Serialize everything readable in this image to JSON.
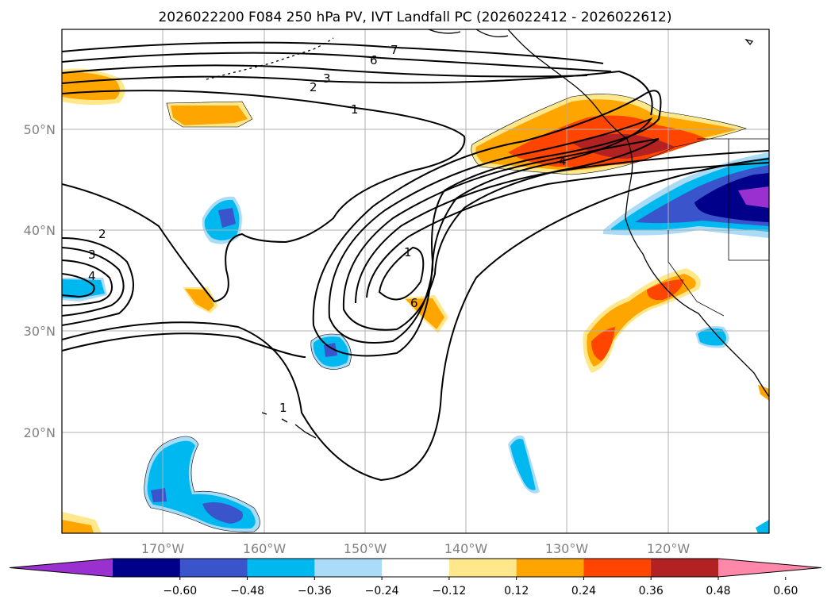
{
  "title": "2026022200 F084 250 hPa PV, IVT Landfall PC (2026022412 - 2026022612)",
  "map": {
    "lon_range": [
      -180,
      -110
    ],
    "lat_range": [
      10,
      60
    ],
    "lon_ticks": [
      "170°W",
      "160°W",
      "150°W",
      "140°W",
      "130°W",
      "120°W"
    ],
    "lat_ticks": [
      "50°N",
      "40°N",
      "30°N",
      "20°N"
    ],
    "gridlines": true,
    "contour_labels": [
      "7",
      "6",
      "3",
      "2",
      "1",
      "1",
      "2",
      "3",
      "4",
      "4",
      "6",
      "1"
    ]
  },
  "colorbar": {
    "ticks": [
      "−0.60",
      "−0.48",
      "−0.36",
      "−0.24",
      "−0.12",
      "0.12",
      "0.24",
      "0.36",
      "0.48",
      "0.60"
    ],
    "colors": [
      "#9b30d0",
      "#00008b",
      "#3a55cc",
      "#00b8f0",
      "#aadcf8",
      "#ffffff",
      "#ffe88c",
      "#ffa500",
      "#ff4500",
      "#b22222",
      "#ff88aa"
    ]
  }
}
